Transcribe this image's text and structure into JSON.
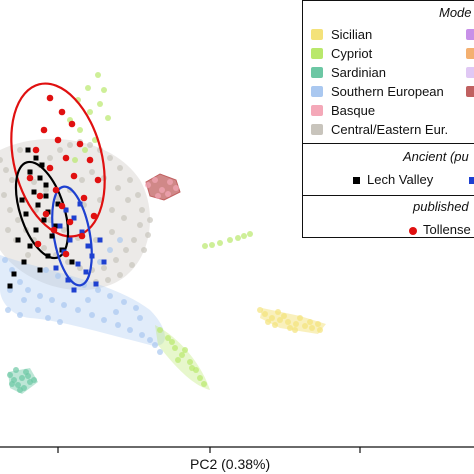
{
  "chart_data": {
    "type": "scatter",
    "xlabel": "PC2 (0.38%)",
    "legend": {
      "modern_header": "Mode",
      "modern": [
        {
          "name": "Sicilian",
          "color": "#f4e27a"
        },
        {
          "name": "Cypriot",
          "color": "#b9e86c"
        },
        {
          "name": "Sardinian",
          "color": "#6cc7a4"
        },
        {
          "name": "Southern European",
          "color": "#aac8f0"
        },
        {
          "name": "Basque",
          "color": "#f4a8b8"
        },
        {
          "name": "Central/Eastern Eur.",
          "color": "#c8c4bc"
        }
      ],
      "modern_right_column_colors": [
        "#c890e8",
        "#f4b070",
        "#e0c8f4",
        "#c06060"
      ],
      "ancient_header": "Ancient (pu",
      "ancient": [
        {
          "name": "Lech Valley",
          "color": "#000000",
          "marker": "square"
        },
        {
          "name": "",
          "color": "#1e40d0",
          "marker": "square"
        }
      ],
      "published_header": "published",
      "published": [
        {
          "name": "Tollense",
          "color": "#e01010",
          "marker": "circle"
        }
      ]
    },
    "series": [
      {
        "name": "Sicilian",
        "color": "#f4e27a",
        "kind": "modern-cloud",
        "points": [
          [
            265,
            314
          ],
          [
            272,
            318
          ],
          [
            280,
            320
          ],
          [
            288,
            322
          ],
          [
            296,
            324
          ],
          [
            305,
            326
          ],
          [
            312,
            328
          ],
          [
            320,
            330
          ],
          [
            275,
            325
          ],
          [
            290,
            328
          ],
          [
            300,
            318
          ],
          [
            268,
            322
          ],
          [
            284,
            316
          ],
          [
            310,
            322
          ],
          [
            260,
            310
          ],
          [
            318,
            324
          ],
          [
            295,
            330
          ],
          [
            278,
            312
          ]
        ]
      },
      {
        "name": "Cypriot",
        "color": "#b9e86c",
        "kind": "modern-cloud",
        "points": [
          [
            160,
            330
          ],
          [
            168,
            338
          ],
          [
            175,
            348
          ],
          [
            182,
            355
          ],
          [
            190,
            362
          ],
          [
            196,
            370
          ],
          [
            200,
            378
          ],
          [
            204,
            384
          ],
          [
            172,
            342
          ],
          [
            185,
            350
          ],
          [
            192,
            368
          ],
          [
            178,
            360
          ],
          [
            205,
            246
          ],
          [
            212,
            245
          ],
          [
            220,
            243
          ],
          [
            230,
            240
          ],
          [
            238,
            238
          ],
          [
            244,
            236
          ],
          [
            250,
            234
          ],
          [
            70,
            120
          ],
          [
            80,
            130
          ],
          [
            90,
            112
          ],
          [
            100,
            104
          ],
          [
            95,
            140
          ],
          [
            85,
            150
          ],
          [
            75,
            160
          ],
          [
            104,
            90
          ],
          [
            98,
            75
          ],
          [
            88,
            88
          ],
          [
            78,
            100
          ],
          [
            108,
            118
          ]
        ]
      },
      {
        "name": "Sardinian",
        "color": "#6cc7a4",
        "kind": "modern-cloud",
        "points": [
          [
            10,
            375
          ],
          [
            14,
            380
          ],
          [
            18,
            385
          ],
          [
            22,
            378
          ],
          [
            26,
            372
          ],
          [
            30,
            382
          ],
          [
            20,
            390
          ],
          [
            16,
            370
          ],
          [
            24,
            388
          ],
          [
            28,
            376
          ],
          [
            12,
            384
          ],
          [
            34,
            380
          ]
        ]
      },
      {
        "name": "Southern European",
        "color": "#aac8f0",
        "kind": "modern-cloud",
        "points": [
          [
            5,
            260
          ],
          [
            12,
            270
          ],
          [
            20,
            282
          ],
          [
            28,
            290
          ],
          [
            40,
            296
          ],
          [
            52,
            300
          ],
          [
            64,
            305
          ],
          [
            78,
            310
          ],
          [
            92,
            315
          ],
          [
            104,
            320
          ],
          [
            118,
            325
          ],
          [
            130,
            330
          ],
          [
            142,
            335
          ],
          [
            150,
            340
          ],
          [
            10,
            290
          ],
          [
            24,
            300
          ],
          [
            38,
            310
          ],
          [
            48,
            318
          ],
          [
            60,
            322
          ],
          [
            70,
            280
          ],
          [
            84,
            285
          ],
          [
            98,
            290
          ],
          [
            110,
            296
          ],
          [
            124,
            302
          ],
          [
            136,
            308
          ],
          [
            8,
            310
          ],
          [
            20,
            315
          ],
          [
            46,
            270
          ],
          [
            58,
            276
          ],
          [
            88,
            300
          ],
          [
            116,
            312
          ],
          [
            140,
            318
          ],
          [
            155,
            345
          ],
          [
            160,
            352
          ],
          [
            120,
            240
          ],
          [
            110,
            250
          ],
          [
            100,
            262
          ]
        ]
      },
      {
        "name": "Basque",
        "color": "#f4a8b8",
        "kind": "modern-cloud",
        "points": [
          [
            148,
            185
          ],
          [
            155,
            180
          ],
          [
            162,
            190
          ],
          [
            170,
            182
          ],
          [
            176,
            188
          ],
          [
            158,
            196
          ],
          [
            168,
            194
          ]
        ]
      },
      {
        "name": "Central/Eastern Eur.",
        "color": "#c8c4bc",
        "kind": "modern-cloud",
        "points": [
          [
            0,
            160
          ],
          [
            6,
            170
          ],
          [
            12,
            180
          ],
          [
            4,
            195
          ],
          [
            10,
            210
          ],
          [
            18,
            220
          ],
          [
            26,
            230
          ],
          [
            34,
            240
          ],
          [
            44,
            248
          ],
          [
            56,
            255
          ],
          [
            68,
            262
          ],
          [
            80,
            268
          ],
          [
            92,
            270
          ],
          [
            104,
            268
          ],
          [
            116,
            260
          ],
          [
            126,
            250
          ],
          [
            134,
            240
          ],
          [
            140,
            225
          ],
          [
            142,
            210
          ],
          [
            138,
            195
          ],
          [
            130,
            180
          ],
          [
            120,
            168
          ],
          [
            110,
            158
          ],
          [
            100,
            150
          ],
          [
            90,
            145
          ],
          [
            80,
            142
          ],
          [
            70,
            145
          ],
          [
            60,
            150
          ],
          [
            50,
            158
          ],
          [
            40,
            165
          ],
          [
            30,
            172
          ],
          [
            20,
            150
          ],
          [
            24,
            200
          ],
          [
            36,
            210
          ],
          [
            50,
            220
          ],
          [
            64,
            230
          ],
          [
            78,
            238
          ],
          [
            96,
            240
          ],
          [
            112,
            232
          ],
          [
            124,
            218
          ],
          [
            128,
            200
          ],
          [
            118,
            188
          ],
          [
            104,
            178
          ],
          [
            92,
            172
          ],
          [
            82,
            180
          ],
          [
            70,
            190
          ],
          [
            58,
            198
          ],
          [
            46,
            190
          ],
          [
            34,
            182
          ],
          [
            16,
            240
          ],
          [
            28,
            255
          ],
          [
            8,
            230
          ],
          [
            66,
            210
          ],
          [
            84,
            205
          ],
          [
            100,
            200
          ],
          [
            112,
            210
          ],
          [
            132,
            265
          ],
          [
            120,
            275
          ],
          [
            108,
            280
          ],
          [
            96,
            282
          ],
          [
            150,
            220
          ],
          [
            148,
            235
          ],
          [
            144,
            250
          ]
        ]
      },
      {
        "name": "Lech Valley",
        "color": "#000000",
        "kind": "ancient-square",
        "points": [
          [
            28,
            150
          ],
          [
            36,
            158
          ],
          [
            42,
            165
          ],
          [
            30,
            172
          ],
          [
            40,
            178
          ],
          [
            46,
            185
          ],
          [
            34,
            192
          ],
          [
            22,
            200
          ],
          [
            38,
            205
          ],
          [
            48,
            212
          ],
          [
            26,
            214
          ],
          [
            44,
            220
          ],
          [
            56,
            226
          ],
          [
            36,
            230
          ],
          [
            52,
            236
          ],
          [
            18,
            240
          ],
          [
            30,
            246
          ],
          [
            62,
            250
          ],
          [
            48,
            256
          ],
          [
            72,
            262
          ],
          [
            40,
            270
          ],
          [
            24,
            262
          ],
          [
            14,
            274
          ],
          [
            10,
            286
          ],
          [
            46,
            196
          ],
          [
            58,
            204
          ]
        ]
      },
      {
        "name": "",
        "color": "#1e40d0",
        "kind": "ancient-square",
        "points": [
          [
            66,
            210
          ],
          [
            74,
            218
          ],
          [
            60,
            226
          ],
          [
            82,
            232
          ],
          [
            70,
            240
          ],
          [
            88,
            246
          ],
          [
            64,
            252
          ],
          [
            92,
            256
          ],
          [
            78,
            264
          ],
          [
            56,
            268
          ],
          [
            86,
            272
          ],
          [
            68,
            280
          ],
          [
            96,
            284
          ],
          [
            74,
            290
          ],
          [
            104,
            262
          ],
          [
            100,
            240
          ],
          [
            80,
            204
          ]
        ]
      },
      {
        "name": "Tollense",
        "color": "#e01010",
        "kind": "published-circle",
        "points": [
          [
            50,
            98
          ],
          [
            62,
            112
          ],
          [
            72,
            124
          ],
          [
            44,
            130
          ],
          [
            58,
            140
          ],
          [
            80,
            144
          ],
          [
            36,
            150
          ],
          [
            66,
            158
          ],
          [
            90,
            160
          ],
          [
            50,
            168
          ],
          [
            30,
            178
          ],
          [
            74,
            176
          ],
          [
            98,
            180
          ],
          [
            56,
            190
          ],
          [
            40,
            196
          ],
          [
            84,
            198
          ],
          [
            62,
            206
          ],
          [
            46,
            214
          ],
          [
            94,
            216
          ],
          [
            70,
            222
          ],
          [
            54,
            230
          ],
          [
            82,
            236
          ],
          [
            38,
            244
          ],
          [
            66,
            254
          ]
        ]
      }
    ]
  }
}
